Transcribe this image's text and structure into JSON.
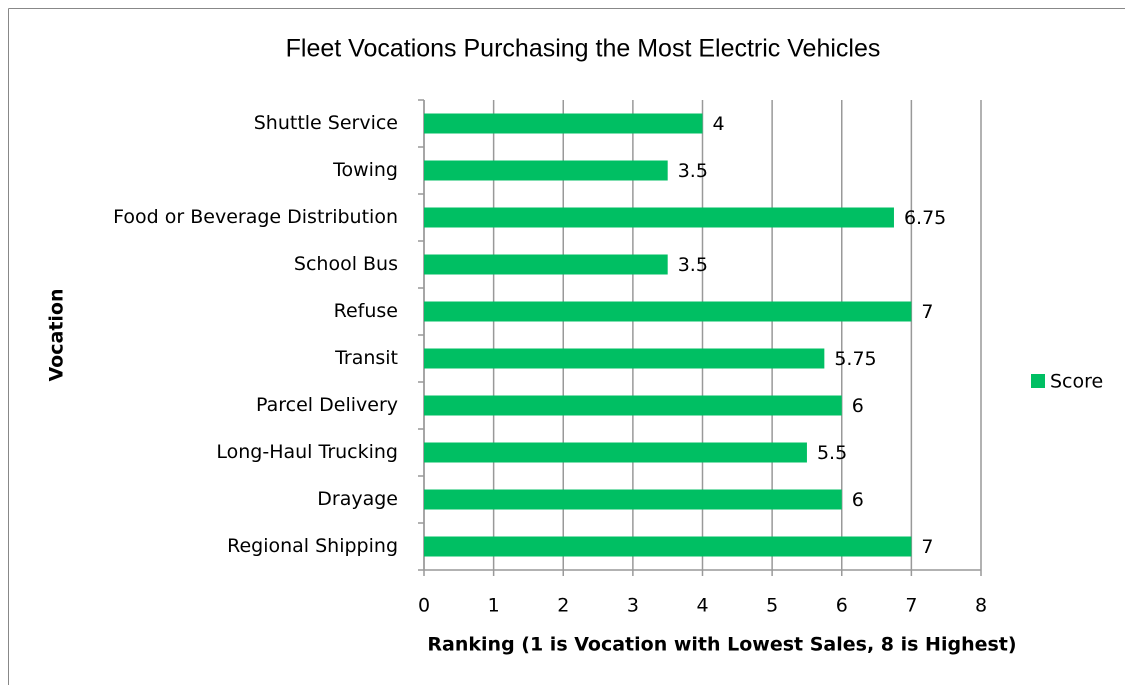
{
  "chart_data": {
    "type": "bar",
    "orientation": "horizontal",
    "title": "Fleet Vocations Purchasing the Most Electric Vehicles",
    "x_label": "Ranking (1 is Vocation with Lowest Sales, 8 is Highest)",
    "y_label": "Vocation",
    "categories": [
      "Shuttle Service",
      "Towing",
      "Food or Beverage Distribution",
      "School Bus",
      "Refuse",
      "Transit",
      "Parcel Delivery",
      "Long-Haul Trucking",
      "Drayage",
      "Regional Shipping"
    ],
    "series": [
      {
        "name": "Score",
        "color": "#00bf63",
        "values": [
          4,
          3.5,
          6.75,
          3.5,
          7,
          5.75,
          6,
          5.5,
          6,
          7
        ]
      }
    ],
    "xlim": [
      0,
      8
    ],
    "xticks": [
      0,
      1,
      2,
      3,
      4,
      5,
      6,
      7,
      8
    ],
    "grid": true,
    "legend": "right"
  }
}
